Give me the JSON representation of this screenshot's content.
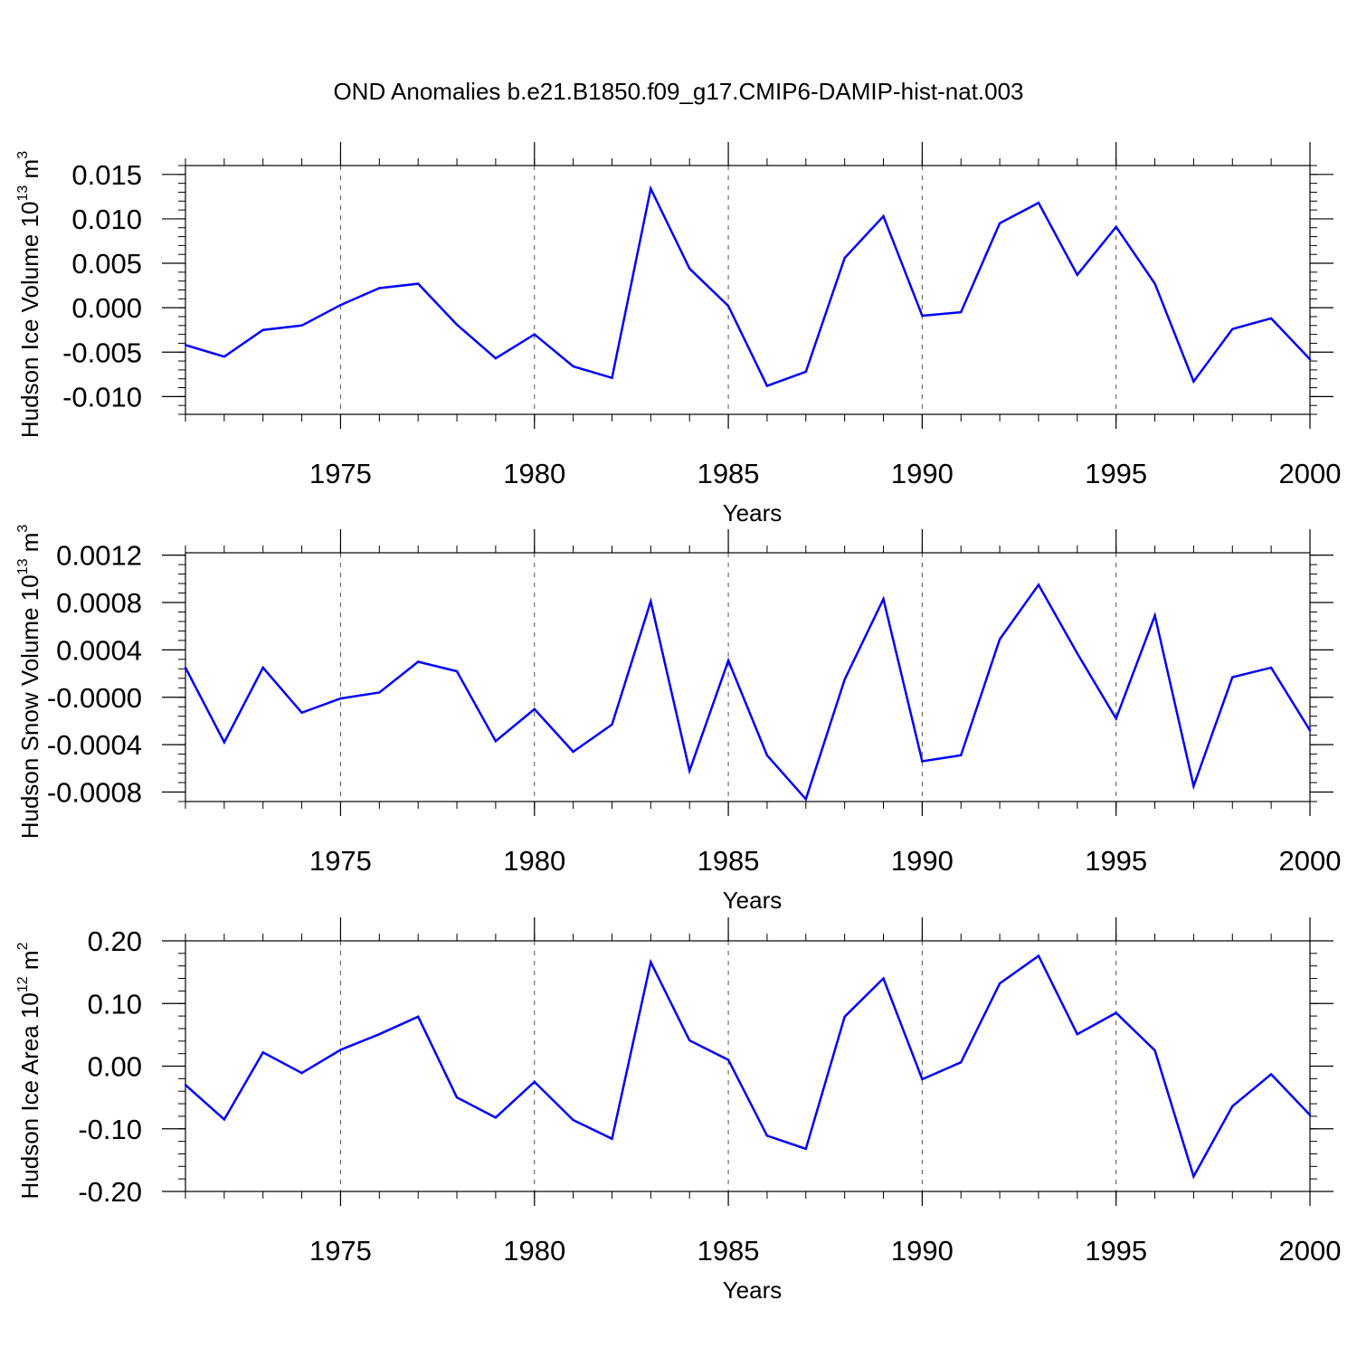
{
  "title": "OND Anomalies b.e21.B1850.f09_g17.CMIP6-DAMIP-hist-nat.003",
  "colors": {
    "line": "#0000ff",
    "frame": "#000000",
    "grid": "#555555",
    "background": "#ffffff"
  },
  "chart_data": [
    {
      "type": "line",
      "title": "",
      "xlabel": "Years",
      "ylabel": "Hudson Ice Volume 10",
      "ylabel_sup": "13",
      "ylabel_unit": "m",
      "ylabel_unit_sup": "3",
      "xlim": [
        1971,
        2000
      ],
      "ylim": [
        -0.012,
        0.016
      ],
      "x_ticks": [
        1975,
        1980,
        1985,
        1990,
        1995,
        2000
      ],
      "x_tick_labels": [
        "1975",
        "1980",
        "1985",
        "1990",
        "1995",
        "2000"
      ],
      "y_ticks": [
        -0.01,
        -0.005,
        0.0,
        0.005,
        0.01,
        0.015
      ],
      "y_tick_labels": [
        "-0.010",
        "-0.005",
        "0.000",
        "0.005",
        "0.010",
        "0.015"
      ],
      "grid": "vertical dashed at major x ticks",
      "x": [
        1971,
        1972,
        1973,
        1974,
        1975,
        1976,
        1977,
        1978,
        1979,
        1980,
        1981,
        1982,
        1983,
        1984,
        1985,
        1986,
        1987,
        1988,
        1989,
        1990,
        1991,
        1992,
        1993,
        1994,
        1995,
        1996,
        1997,
        1998,
        1999,
        2000
      ],
      "series": [
        {
          "values": [
            -0.0042,
            -0.0055,
            -0.0025,
            -0.002,
            0.0003,
            0.0022,
            0.0027,
            -0.0019,
            -0.0057,
            -0.003,
            -0.0066,
            -0.0079,
            0.0134,
            0.0044,
            0.0002,
            -0.0088,
            -0.0072,
            0.0056,
            0.0103,
            -0.0009,
            -0.0005,
            0.0095,
            0.0118,
            0.0037,
            0.0091,
            0.0027,
            -0.0083,
            -0.0024,
            -0.0012,
            -0.0058
          ]
        }
      ]
    },
    {
      "type": "line",
      "title": "",
      "xlabel": "Years",
      "ylabel": "Hudson Snow Volume 10",
      "ylabel_sup": "13",
      "ylabel_unit": "m",
      "ylabel_unit_sup": "3",
      "xlim": [
        1971,
        2000
      ],
      "ylim": [
        -0.00088,
        0.00122
      ],
      "x_ticks": [
        1975,
        1980,
        1985,
        1990,
        1995,
        2000
      ],
      "x_tick_labels": [
        "1975",
        "1980",
        "1985",
        "1990",
        "1995",
        "2000"
      ],
      "y_ticks": [
        -0.0008,
        -0.0004,
        0.0,
        0.0004,
        0.0008,
        0.0012
      ],
      "y_tick_labels": [
        "-0.0008",
        "-0.0004",
        "-0.0000",
        "0.0004",
        "0.0008",
        "0.0012"
      ],
      "grid": "vertical dashed at major x ticks",
      "x": [
        1971,
        1972,
        1973,
        1974,
        1975,
        1976,
        1977,
        1978,
        1979,
        1980,
        1981,
        1982,
        1983,
        1984,
        1985,
        1986,
        1987,
        1988,
        1989,
        1990,
        1991,
        1992,
        1993,
        1994,
        1995,
        1996,
        1997,
        1998,
        1999,
        2000
      ],
      "series": [
        {
          "values": [
            0.00025,
            -0.00038,
            0.00025,
            -0.00013,
            -1e-05,
            4e-05,
            0.0003,
            0.00022,
            -0.00037,
            -0.0001,
            -0.00046,
            -0.00023,
            0.00081,
            -0.00062,
            0.00031,
            -0.00049,
            -0.00086,
            0.00015,
            0.00083,
            -0.00054,
            -0.00049,
            0.00049,
            0.00095,
            0.00037,
            -0.00018,
            0.00069,
            -0.00075,
            0.00017,
            0.00025,
            -0.00028
          ]
        }
      ]
    },
    {
      "type": "line",
      "title": "",
      "xlabel": "Years",
      "ylabel": "Hudson Ice Area 10",
      "ylabel_sup": "12",
      "ylabel_unit": "m",
      "ylabel_unit_sup": "2",
      "xlim": [
        1971,
        2000
      ],
      "ylim": [
        -0.2,
        0.2
      ],
      "x_ticks": [
        1975,
        1980,
        1985,
        1990,
        1995,
        2000
      ],
      "x_tick_labels": [
        "1975",
        "1980",
        "1985",
        "1990",
        "1995",
        "2000"
      ],
      "y_ticks": [
        -0.2,
        -0.1,
        0.0,
        0.1,
        0.2
      ],
      "y_tick_labels": [
        "-0.20",
        "-0.10",
        "0.00",
        "0.10",
        "0.20"
      ],
      "grid": "vertical dashed at major x ticks",
      "x": [
        1971,
        1972,
        1973,
        1974,
        1975,
        1976,
        1977,
        1978,
        1979,
        1980,
        1981,
        1982,
        1983,
        1984,
        1985,
        1986,
        1987,
        1988,
        1989,
        1990,
        1991,
        1992,
        1993,
        1994,
        1995,
        1996,
        1997,
        1998,
        1999,
        2000
      ],
      "series": [
        {
          "values": [
            -0.03,
            -0.085,
            0.022,
            -0.011,
            0.026,
            0.051,
            0.079,
            -0.05,
            -0.082,
            -0.025,
            -0.086,
            -0.116,
            0.166,
            0.041,
            0.01,
            -0.111,
            -0.132,
            0.079,
            0.14,
            -0.021,
            0.006,
            0.132,
            0.176,
            0.051,
            0.085,
            0.025,
            -0.176,
            -0.064,
            -0.013,
            -0.078
          ]
        }
      ]
    }
  ]
}
